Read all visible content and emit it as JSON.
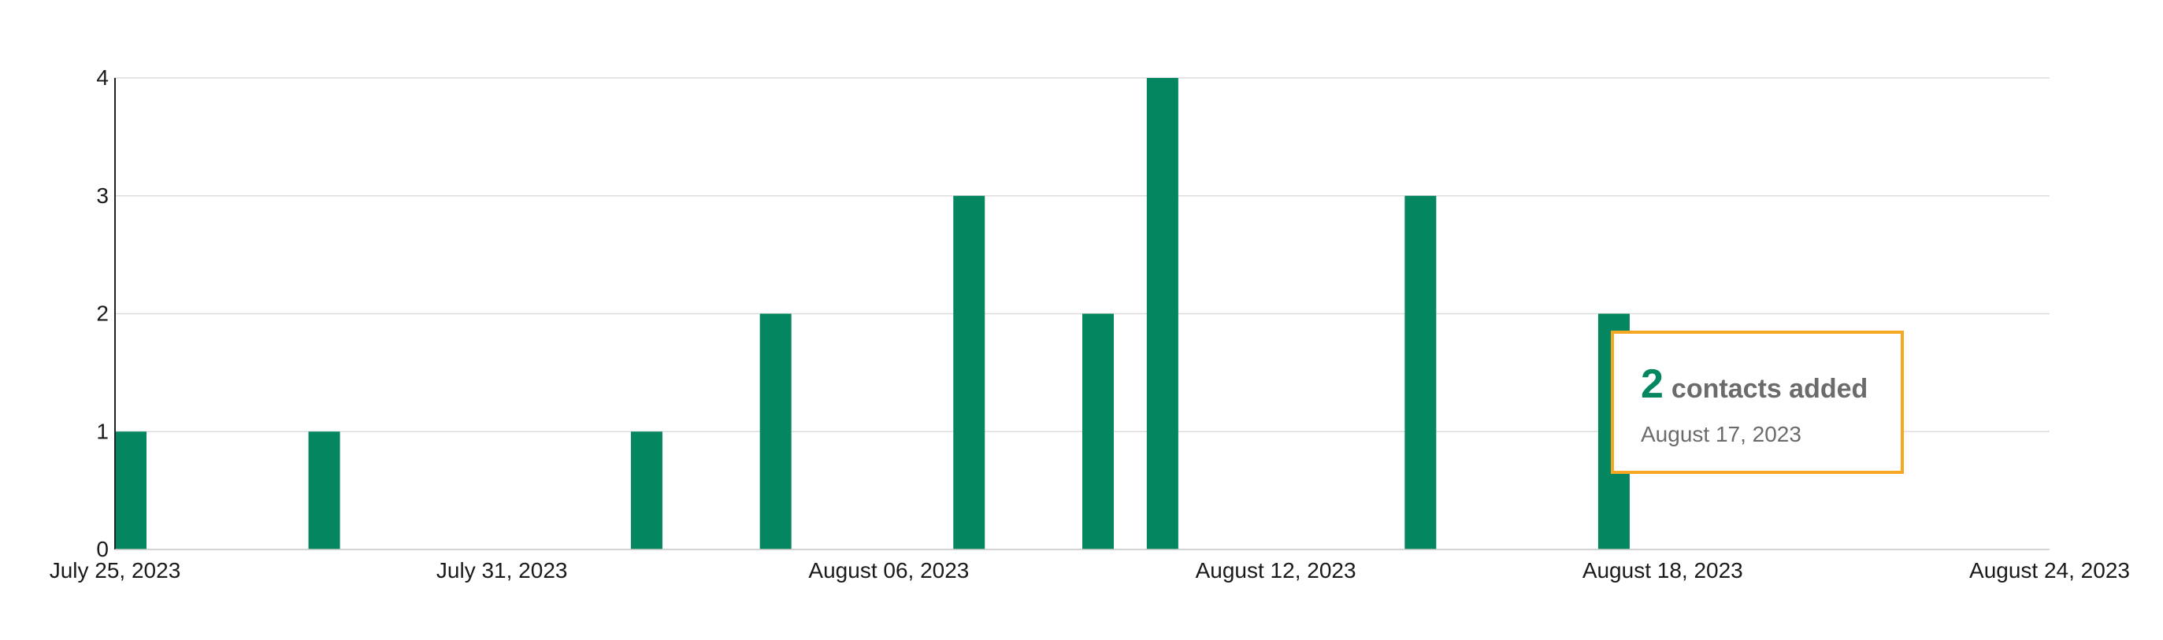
{
  "chart_data": {
    "type": "bar",
    "title": "",
    "xlabel": "",
    "ylabel": "",
    "x_ticks": [
      "July 25, 2023",
      "July 31, 2023",
      "August 06, 2023",
      "August 12, 2023",
      "August 18, 2023",
      "August 24, 2023"
    ],
    "y_ticks": [
      "0",
      "1",
      "2",
      "3",
      "4"
    ],
    "ylim": [
      0,
      4
    ],
    "xlim": [
      "2023-07-25",
      "2023-08-24"
    ],
    "grid": true,
    "legend": "none",
    "bar_color": "#048760",
    "series": [
      {
        "points": [
          {
            "date": "2023-07-25",
            "value": 1
          },
          {
            "date": "2023-07-28",
            "value": 1
          },
          {
            "date": "2023-08-02",
            "value": 1
          },
          {
            "date": "2023-08-04",
            "value": 2
          },
          {
            "date": "2023-08-07",
            "value": 3
          },
          {
            "date": "2023-08-09",
            "value": 2
          },
          {
            "date": "2023-08-10",
            "value": 4
          },
          {
            "date": "2023-08-14",
            "value": 3
          },
          {
            "date": "2023-08-17",
            "value": 2
          }
        ]
      }
    ]
  },
  "tooltip": {
    "value": "2",
    "label": "contacts added",
    "date": "August 17, 2023",
    "value_color": "#048760",
    "border_color": "#f5a623"
  }
}
